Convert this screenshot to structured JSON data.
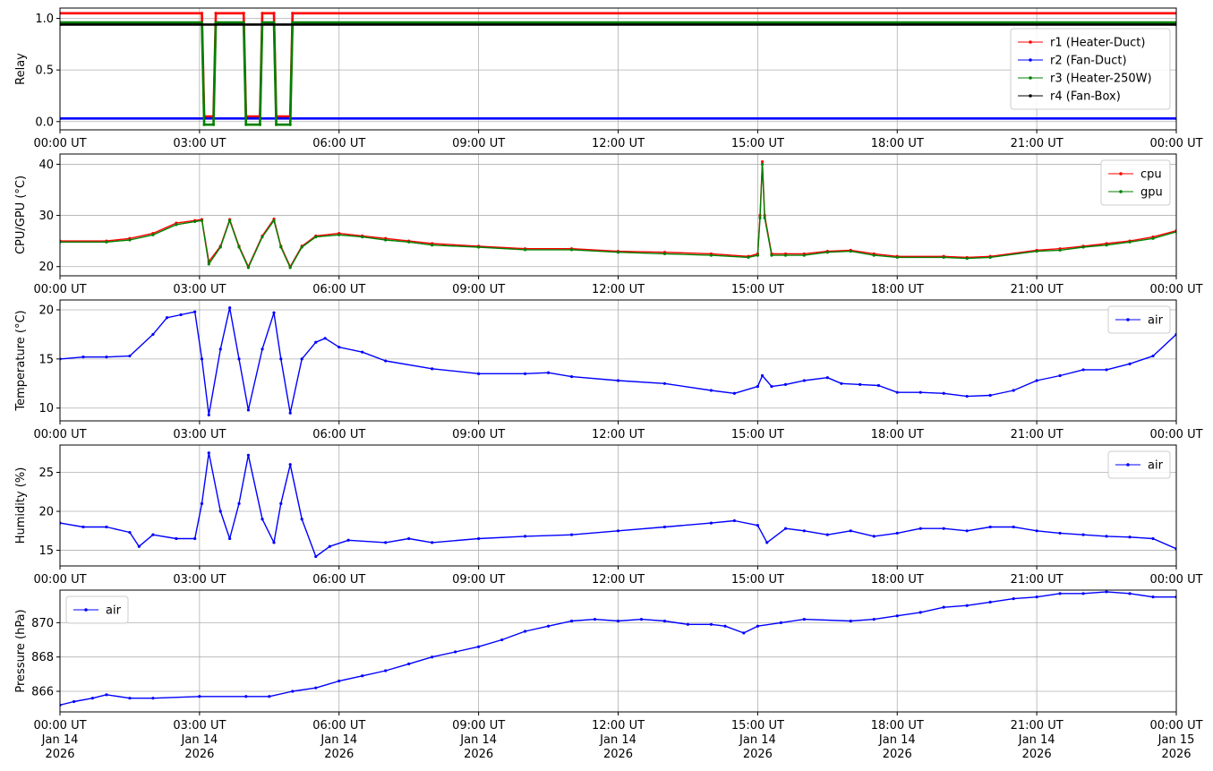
{
  "chart_data": [
    {
      "type": "line",
      "ylabel": "Relay",
      "ylim": [
        -0.08,
        1.1
      ],
      "yticks": [
        0.0,
        0.5,
        1.0
      ],
      "ytick_labels": [
        "0.0",
        "0.5",
        "1.0"
      ],
      "grid": true,
      "legend_position": "center-right",
      "series": [
        {
          "name": "r1 (Heater-Duct)",
          "color": "#ff0000",
          "x": [
            0,
            3.05,
            3.1,
            3.3,
            3.35,
            3.95,
            4.0,
            4.3,
            4.35,
            4.6,
            4.65,
            4.95,
            5.0,
            24
          ],
          "y": [
            1.05,
            1.05,
            0.05,
            0.05,
            1.05,
            1.05,
            0.05,
            0.05,
            1.05,
            1.05,
            0.05,
            0.05,
            1.05,
            1.05
          ]
        },
        {
          "name": "r2 (Fan-Duct)",
          "color": "#0000ff",
          "x": [
            0,
            24
          ],
          "y": [
            0.03,
            0.03
          ]
        },
        {
          "name": "r3 (Heater-250W)",
          "color": "#008000",
          "x": [
            0,
            3.05,
            3.1,
            3.3,
            3.35,
            3.95,
            4.0,
            4.3,
            4.35,
            4.6,
            4.65,
            4.95,
            5.0,
            24
          ],
          "y": [
            0.96,
            0.96,
            -0.03,
            -0.03,
            0.96,
            0.96,
            -0.03,
            -0.03,
            0.96,
            0.96,
            -0.03,
            -0.03,
            0.96,
            0.96
          ]
        },
        {
          "name": "r4 (Fan-Box)",
          "color": "#000000",
          "x": [
            0,
            24
          ],
          "y": [
            0.94,
            0.94
          ]
        }
      ]
    },
    {
      "type": "line",
      "ylabel": "CPU/GPU (°C)",
      "ylim": [
        18.2,
        42
      ],
      "yticks": [
        20,
        30,
        40
      ],
      "ytick_labels": [
        "20",
        "30",
        "40"
      ],
      "grid": true,
      "legend_position": "top-right",
      "series": [
        {
          "name": "cpu",
          "color": "#ff0000",
          "x": [
            0,
            1.0,
            1.5,
            2.0,
            2.5,
            2.9,
            3.05,
            3.2,
            3.45,
            3.65,
            3.85,
            4.05,
            4.35,
            4.6,
            4.75,
            4.95,
            5.2,
            5.5,
            6.0,
            6.5,
            7.0,
            7.5,
            8.0,
            9.0,
            10.0,
            11.0,
            12.0,
            13.0,
            14.0,
            14.8,
            15.0,
            15.05,
            15.1,
            15.15,
            15.3,
            15.6,
            16.0,
            16.5,
            17.0,
            17.5,
            18.0,
            19.0,
            19.5,
            20.0,
            21.0,
            21.5,
            22.0,
            22.5,
            23.0,
            23.5,
            24.0
          ],
          "y": [
            25,
            25,
            25.5,
            26.5,
            28.5,
            29,
            29.2,
            21,
            24,
            29.2,
            24,
            20,
            26,
            29.3,
            24,
            20,
            24,
            26,
            26.5,
            26,
            25.5,
            25,
            24.5,
            24,
            23.5,
            23.5,
            23,
            22.8,
            22.5,
            22,
            22.5,
            30,
            40.5,
            30,
            22.5,
            22.5,
            22.5,
            23,
            23.2,
            22.5,
            22,
            22,
            21.8,
            22,
            23.2,
            23.5,
            24,
            24.5,
            25,
            25.8,
            27
          ]
        },
        {
          "name": "gpu",
          "color": "#008000",
          "x": [
            0,
            1.0,
            1.5,
            2.0,
            2.5,
            2.9,
            3.05,
            3.2,
            3.45,
            3.65,
            3.85,
            4.05,
            4.35,
            4.6,
            4.75,
            4.95,
            5.2,
            5.5,
            6.0,
            6.5,
            7.0,
            7.5,
            8.0,
            9.0,
            10.0,
            11.0,
            12.0,
            13.0,
            14.0,
            14.8,
            15.0,
            15.05,
            15.1,
            15.15,
            15.3,
            15.6,
            16.0,
            16.5,
            17.0,
            17.5,
            18.0,
            19.0,
            19.5,
            20.0,
            21.0,
            21.5,
            22.0,
            22.5,
            23.0,
            23.5,
            24.0
          ],
          "y": [
            24.8,
            24.8,
            25.2,
            26.2,
            28.2,
            28.8,
            29,
            20.5,
            23.8,
            29,
            23.8,
            19.8,
            25.8,
            29,
            23.8,
            19.8,
            23.8,
            25.8,
            26.2,
            25.8,
            25.2,
            24.8,
            24.2,
            23.8,
            23.3,
            23.3,
            22.8,
            22.5,
            22.2,
            21.8,
            22.2,
            29.5,
            40,
            29.5,
            22.2,
            22.2,
            22.2,
            22.8,
            23,
            22.2,
            21.8,
            21.8,
            21.6,
            21.8,
            23,
            23.2,
            23.8,
            24.2,
            24.8,
            25.5,
            26.8
          ]
        }
      ]
    },
    {
      "type": "line",
      "ylabel": "Temperature (°C)",
      "ylim": [
        8.7,
        21
      ],
      "yticks": [
        10,
        15,
        20
      ],
      "ytick_labels": [
        "10",
        "15",
        "20"
      ],
      "grid": true,
      "legend_position": "top-right",
      "series": [
        {
          "name": "air",
          "color": "#0000ff",
          "x": [
            0,
            0.5,
            1.0,
            1.5,
            2.0,
            2.3,
            2.6,
            2.9,
            3.05,
            3.2,
            3.45,
            3.65,
            3.85,
            4.05,
            4.35,
            4.6,
            4.75,
            4.95,
            5.2,
            5.5,
            5.7,
            6.0,
            6.5,
            7.0,
            8.0,
            9.0,
            10.0,
            10.5,
            11.0,
            12.0,
            13.0,
            14.0,
            14.5,
            15.0,
            15.1,
            15.3,
            15.6,
            16.0,
            16.5,
            16.8,
            17.2,
            17.6,
            18.0,
            18.5,
            19.0,
            19.5,
            20.0,
            20.5,
            21.0,
            21.5,
            22.0,
            22.5,
            23.0,
            23.5,
            24.0
          ],
          "y": [
            15,
            15.2,
            15.2,
            15.3,
            17.5,
            19.2,
            19.5,
            19.8,
            15,
            9.3,
            16,
            20.2,
            15,
            9.8,
            16,
            19.7,
            15,
            9.5,
            15,
            16.7,
            17.1,
            16.2,
            15.7,
            14.8,
            14,
            13.5,
            13.5,
            13.6,
            13.2,
            12.8,
            12.5,
            11.8,
            11.5,
            12.2,
            13.3,
            12.2,
            12.4,
            12.8,
            13.1,
            12.5,
            12.4,
            12.3,
            11.6,
            11.6,
            11.5,
            11.2,
            11.3,
            11.8,
            12.8,
            13.3,
            13.9,
            13.9,
            14.5,
            15.3,
            17.5
          ]
        }
      ]
    },
    {
      "type": "line",
      "ylabel": "Humidity (%)",
      "ylim": [
        13,
        28.5
      ],
      "yticks": [
        15,
        20,
        25
      ],
      "ytick_labels": [
        "15",
        "20",
        "25"
      ],
      "grid": true,
      "legend_position": "top-right",
      "series": [
        {
          "name": "air",
          "color": "#0000ff",
          "x": [
            0,
            0.5,
            1.0,
            1.5,
            1.7,
            2.0,
            2.5,
            2.9,
            3.05,
            3.2,
            3.45,
            3.65,
            3.85,
            4.05,
            4.35,
            4.6,
            4.75,
            4.95,
            5.2,
            5.5,
            5.8,
            6.2,
            7.0,
            7.5,
            8.0,
            9.0,
            10.0,
            11.0,
            12.0,
            13.0,
            14.0,
            14.5,
            15.0,
            15.2,
            15.6,
            16.0,
            16.5,
            17.0,
            17.5,
            18.0,
            18.5,
            19.0,
            19.5,
            20.0,
            20.5,
            21.0,
            21.5,
            22.0,
            22.5,
            23.0,
            23.5,
            24.0
          ],
          "y": [
            18.5,
            18,
            18,
            17.3,
            15.5,
            17,
            16.5,
            16.5,
            21,
            27.5,
            20,
            16.5,
            21,
            27.2,
            19,
            16,
            21,
            26,
            19,
            14.2,
            15.5,
            16.3,
            16,
            16.5,
            16,
            16.5,
            16.8,
            17,
            17.5,
            18,
            18.5,
            18.8,
            18.2,
            16,
            17.8,
            17.5,
            17,
            17.5,
            16.8,
            17.2,
            17.8,
            17.8,
            17.5,
            18,
            18,
            17.5,
            17.2,
            17,
            16.8,
            16.7,
            16.5,
            15.2
          ]
        }
      ]
    },
    {
      "type": "line",
      "ylabel": "Pressure (hPa)",
      "ylim": [
        864.8,
        871.9
      ],
      "yticks": [
        866,
        868,
        870
      ],
      "ytick_labels": [
        "866",
        "868",
        "870"
      ],
      "grid": true,
      "legend_position": "top-left",
      "xtick_labels": [
        "00:00 UT\nJan 14\n2026",
        "03:00 UT\nJan 14\n2026",
        "06:00 UT\nJan 14\n2026",
        "09:00 UT\nJan 14\n2026",
        "12:00 UT\nJan 14\n2026",
        "15:00 UT\nJan 14\n2026",
        "18:00 UT\nJan 14\n2026",
        "21:00 UT\nJan 14\n2026",
        "00:00 UT\nJan 15\n2026"
      ],
      "series": [
        {
          "name": "air",
          "color": "#0000ff",
          "x": [
            0,
            0.3,
            0.7,
            1.0,
            1.5,
            2.0,
            3.0,
            4.0,
            4.5,
            5.0,
            5.5,
            6.0,
            6.5,
            7.0,
            7.5,
            8.0,
            8.5,
            9.0,
            9.5,
            10.0,
            10.5,
            11.0,
            11.5,
            12.0,
            12.5,
            13.0,
            13.5,
            14.0,
            14.3,
            14.7,
            15.0,
            15.5,
            16.0,
            17.0,
            17.5,
            18.0,
            18.5,
            19.0,
            19.5,
            20.0,
            20.5,
            21.0,
            21.5,
            22.0,
            22.5,
            23.0,
            23.5,
            24.0
          ],
          "y": [
            865.2,
            865.4,
            865.6,
            865.8,
            865.6,
            865.6,
            865.7,
            865.7,
            865.7,
            866,
            866.2,
            866.6,
            866.9,
            867.2,
            867.6,
            868,
            868.3,
            868.6,
            869,
            869.5,
            869.8,
            870.1,
            870.2,
            870.1,
            870.2,
            870.1,
            869.9,
            869.9,
            869.8,
            869.4,
            869.8,
            870,
            870.2,
            870.1,
            870.2,
            870.4,
            870.6,
            870.9,
            871,
            871.2,
            871.4,
            871.5,
            871.7,
            871.7,
            871.8,
            871.7,
            871.5,
            871.5
          ]
        }
      ]
    }
  ],
  "xaxis": {
    "xlim": [
      0,
      24
    ],
    "ticks": [
      0,
      3,
      6,
      9,
      12,
      15,
      18,
      21,
      24
    ],
    "tick_labels": [
      "00:00 UT",
      "03:00 UT",
      "06:00 UT",
      "09:00 UT",
      "12:00 UT",
      "15:00 UT",
      "18:00 UT",
      "21:00 UT",
      "00:00 UT"
    ]
  }
}
